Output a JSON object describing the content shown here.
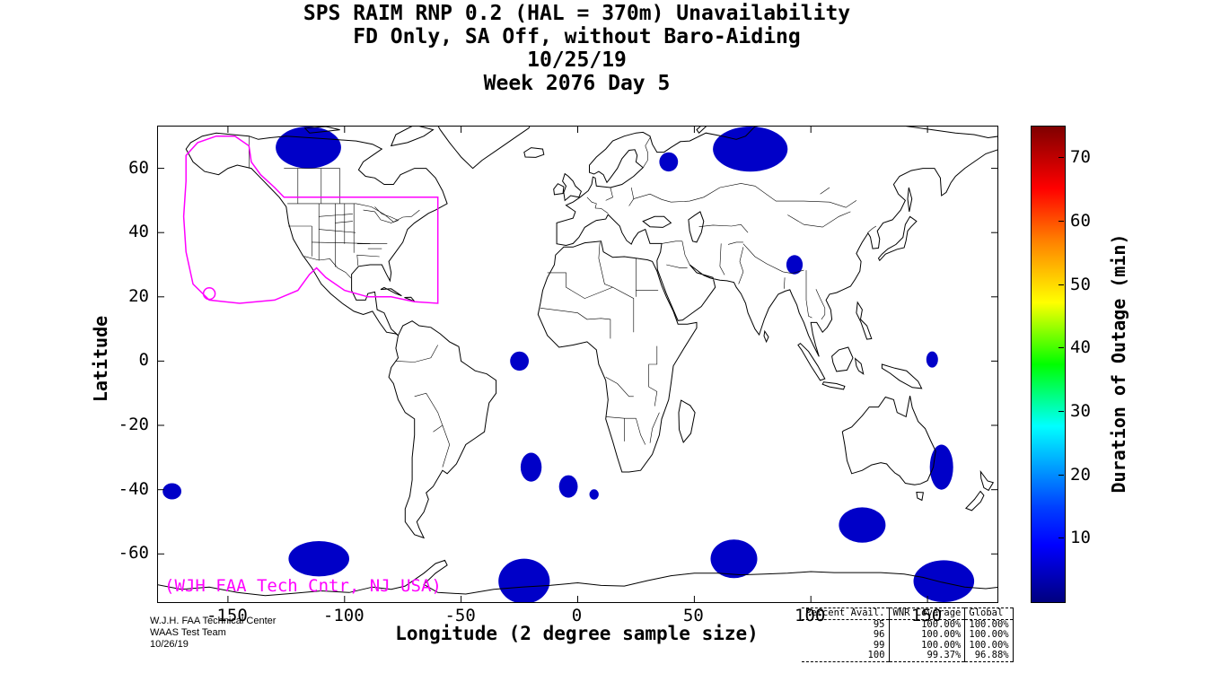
{
  "header": {
    "line1": "SPS RAIM RNP 0.2 (HAL = 370m) Unavailability",
    "line2": "FD Only, SA Off, without Baro-Aiding",
    "line3": "10/25/19",
    "line4": "Week 2076 Day 5"
  },
  "axes": {
    "xlabel": "Longitude (2 degree sample size)",
    "ylabel": "Latitude"
  },
  "colorbar": {
    "label": "Duration of Outage (min)",
    "ticks": [
      10,
      20,
      30,
      40,
      50,
      60,
      70
    ],
    "range": [
      0,
      75
    ],
    "colormap": "jet"
  },
  "annotation": {
    "text": "(WJH FAA Tech Cntr, NJ USA)",
    "color": "#FF00FF"
  },
  "footer": {
    "line1": "W.J.H. FAA Technical Center",
    "line2": "WAAS Test Team",
    "line3": "10/26/19"
  },
  "stats_table": {
    "columns": [
      "Percent Avail.",
      "WNR Coverage",
      "Global"
    ],
    "rows": [
      [
        "95",
        "100.00%",
        "100.00%"
      ],
      [
        "96",
        "100.00%",
        "100.00%"
      ],
      [
        "99",
        "100.00%",
        "100.00%"
      ],
      [
        "100",
        "99.37%",
        "96.88%"
      ]
    ]
  },
  "chart_data": {
    "type": "map-heatmap",
    "title": "SPS RAIM RNP 0.2 (HAL = 370m) Unavailability, FD Only, SA Off, without Baro-Aiding, 10/25/19, Week 2076 Day 5",
    "xlabel": "Longitude (2 degree sample size)",
    "ylabel": "Latitude",
    "xlim": [
      -180,
      180
    ],
    "ylim": [
      -75,
      73
    ],
    "xticks": [
      -150,
      -100,
      -50,
      0,
      50,
      100,
      150
    ],
    "yticks": [
      60,
      40,
      20,
      0,
      -20,
      -40,
      -60
    ],
    "colorbar_label": "Duration of Outage (min)",
    "colorbar_range": [
      0,
      75
    ],
    "colormap": "jet",
    "outage_color": "#0000C8",
    "outage_regions": [
      {
        "lon": -115.5,
        "lat": 66.5,
        "rx_deg": 14,
        "ry_deg": 6.5,
        "duration_min": 5
      },
      {
        "lon": 39,
        "lat": 62,
        "rx_deg": 4,
        "ry_deg": 3,
        "duration_min": 5
      },
      {
        "lon": 74,
        "lat": 66,
        "rx_deg": 16,
        "ry_deg": 7,
        "duration_min": 5
      },
      {
        "lon": 93,
        "lat": 30,
        "rx_deg": 3.5,
        "ry_deg": 3,
        "duration_min": 5
      },
      {
        "lon": -25,
        "lat": 0,
        "rx_deg": 4,
        "ry_deg": 3,
        "duration_min": 5
      },
      {
        "lon": -20,
        "lat": -33,
        "rx_deg": 4.5,
        "ry_deg": 4.5,
        "duration_min": 5
      },
      {
        "lon": -4,
        "lat": -39,
        "rx_deg": 4,
        "ry_deg": 3.5,
        "duration_min": 5
      },
      {
        "lon": 7,
        "lat": -41.5,
        "rx_deg": 2,
        "ry_deg": 1.6,
        "duration_min": 5
      },
      {
        "lon": -174,
        "lat": -40.5,
        "rx_deg": 4,
        "ry_deg": 2.5,
        "duration_min": 5
      },
      {
        "lon": 152,
        "lat": 0.5,
        "rx_deg": 2.5,
        "ry_deg": 2.5,
        "duration_min": 5
      },
      {
        "lon": 156,
        "lat": -33,
        "rx_deg": 5,
        "ry_deg": 7,
        "duration_min": 5
      },
      {
        "lon": 122,
        "lat": -51,
        "rx_deg": 10,
        "ry_deg": 5.5,
        "duration_min": 5
      },
      {
        "lon": -111,
        "lat": -61.5,
        "rx_deg": 13,
        "ry_deg": 5.5,
        "duration_min": 5
      },
      {
        "lon": -23,
        "lat": -68.5,
        "rx_deg": 11,
        "ry_deg": 7,
        "duration_min": 5
      },
      {
        "lon": 67,
        "lat": -61.5,
        "rx_deg": 10,
        "ry_deg": 6,
        "duration_min": 5
      },
      {
        "lon": 157,
        "lat": -68.5,
        "rx_deg": 13,
        "ry_deg": 6.5,
        "duration_min": 5
      }
    ],
    "waas_boundary": {
      "color": "#FF00FF",
      "points": [
        [
          -168,
          64
        ],
        [
          -163,
          68
        ],
        [
          -155,
          70
        ],
        [
          -147,
          70
        ],
        [
          -141,
          67
        ],
        [
          -140,
          62
        ],
        [
          -136,
          58
        ],
        [
          -130,
          54
        ],
        [
          -126,
          51
        ],
        [
          -60,
          51
        ],
        [
          -60,
          18
        ],
        [
          -70,
          18.5
        ],
        [
          -80,
          20
        ],
        [
          -90,
          20
        ],
        [
          -100,
          22
        ],
        [
          -108,
          26
        ],
        [
          -112,
          29
        ],
        [
          -115,
          27
        ],
        [
          -120,
          22
        ],
        [
          -130,
          19
        ],
        [
          -145,
          18
        ],
        [
          -158,
          19
        ],
        [
          -165,
          24
        ],
        [
          -168,
          34
        ],
        [
          -169,
          45
        ],
        [
          -168,
          56
        ]
      ],
      "rings": [
        {
          "lon": -158,
          "lat": 21,
          "rx_deg": 2.5,
          "ry_deg": 1.8
        }
      ]
    }
  }
}
